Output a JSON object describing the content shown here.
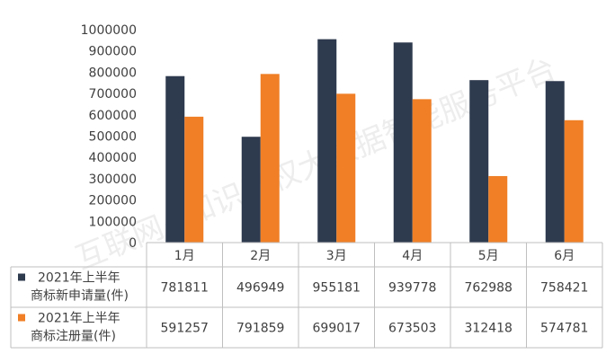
{
  "watermark": "互联网+知识产权大数据智能服务平台",
  "colors": {
    "apply": "#2e3a4e",
    "register": "#f07f26",
    "grid": "#bfbfbf",
    "text": "#404040"
  },
  "chart_data": {
    "type": "bar",
    "categories": [
      "1月",
      "2月",
      "3月",
      "4月",
      "5月",
      "6月"
    ],
    "series": [
      {
        "name": "2021年上半年商标新申请量(件)",
        "legend_lines": [
          "2021年上半年",
          "商标新申请量(件)"
        ],
        "values": [
          781811,
          496949,
          955181,
          939778,
          762988,
          758421
        ]
      },
      {
        "name": "2021年上半年商标注册量(件)",
        "legend_lines": [
          "2021年上半年",
          "商标注册量(件)"
        ],
        "values": [
          591257,
          791859,
          699017,
          673503,
          312418,
          574781
        ]
      }
    ],
    "ylim": [
      0,
      1000000
    ],
    "yticks": [
      "0",
      "100000",
      "200000",
      "300000",
      "400000",
      "500000",
      "600000",
      "700000",
      "800000",
      "900000",
      "1000000"
    ],
    "legend": "data-table",
    "grid": false
  }
}
